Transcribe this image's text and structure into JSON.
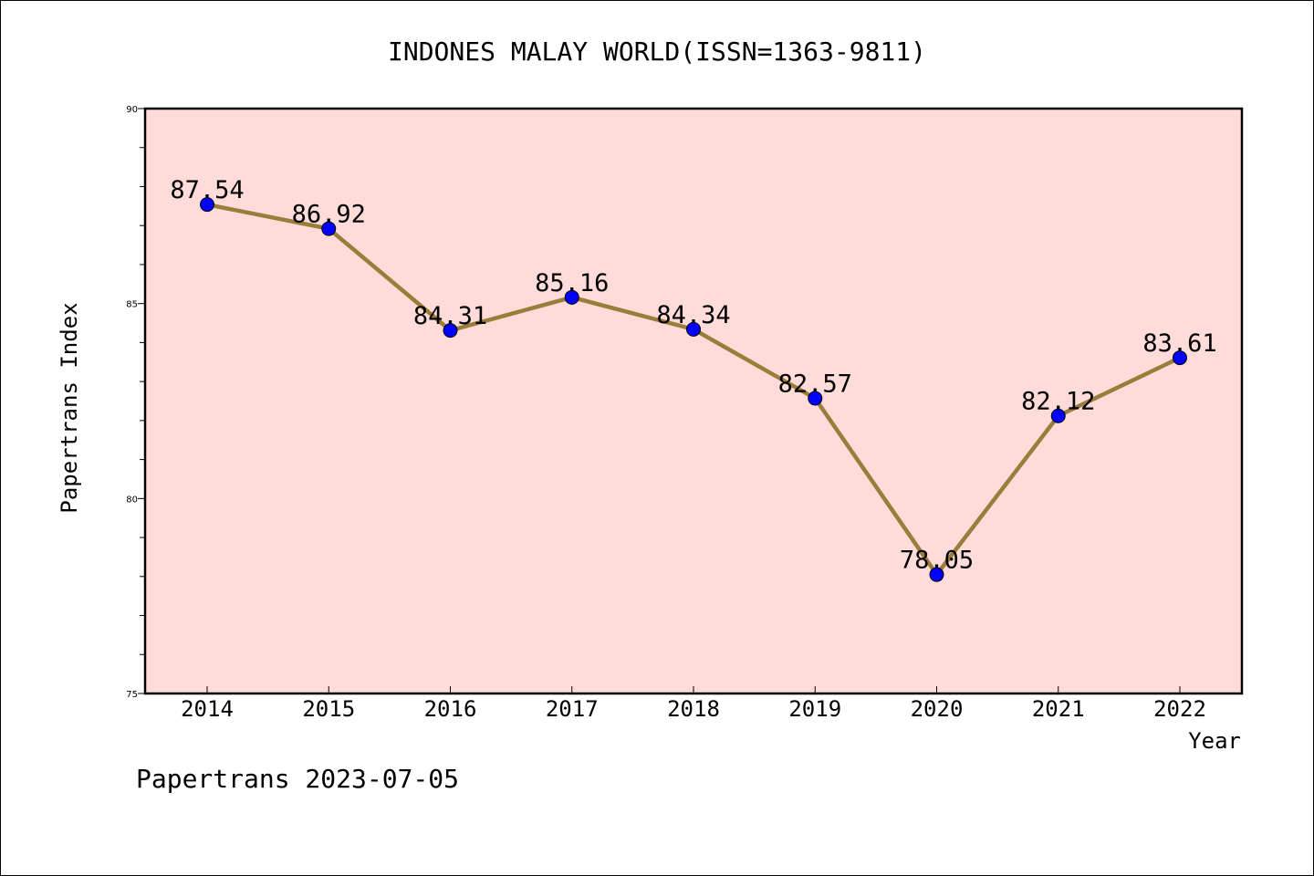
{
  "chart_data": {
    "type": "line",
    "title": "INDONES MALAY WORLD(ISSN=1363-9811)",
    "xlabel": "Year",
    "ylabel": "Papertrans Index",
    "footer": "Papertrans 2023-07-05",
    "categories": [
      "2014",
      "2015",
      "2016",
      "2017",
      "2018",
      "2019",
      "2020",
      "2021",
      "2022"
    ],
    "values": [
      87.54,
      86.92,
      84.31,
      85.16,
      84.34,
      82.57,
      78.05,
      82.12,
      83.61
    ],
    "data_labels": [
      "87.54",
      "86.92",
      "84.31",
      "85.16",
      "84.34",
      "82.57",
      "78.05",
      "82.12",
      "83.61"
    ],
    "y_ticks": [
      "75",
      "80",
      "85",
      "90"
    ],
    "ylim": [
      75,
      90
    ],
    "grid": false,
    "legend": "none",
    "colors": {
      "plot_background": "#FFDCDA",
      "line": "#9A7D3A",
      "marker": "#0000FF"
    }
  }
}
